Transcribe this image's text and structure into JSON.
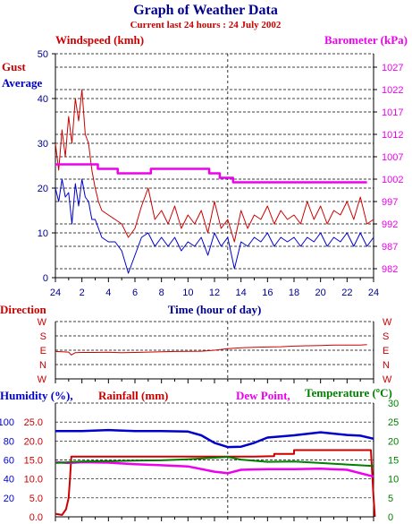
{
  "header": {
    "title": "Graph of Weather Data",
    "subtitle": "Current last 24 hours : 24 July 2002"
  },
  "colors": {
    "navy": "#00008B",
    "red": "#CC0000",
    "magenta": "#EE00EE",
    "green": "#008000",
    "blue": "#0000CC",
    "black": "#000000"
  },
  "chart_data": [
    {
      "type": "line",
      "labels": {
        "windspeed": "Windspeed (kmh)",
        "barometer": "Barometer (kPa)",
        "gust": "Gust",
        "average": "Average",
        "x": "Time (hour of day)"
      },
      "x_ticks": [
        "24",
        "2",
        "4",
        "6",
        "8",
        "10",
        "12",
        "14",
        "16",
        "18",
        "20",
        "22",
        "24"
      ],
      "ylim_left": [
        0,
        50
      ],
      "y_ticks_left": [
        "0",
        "10",
        "20",
        "30",
        "40",
        "50"
      ],
      "ylim_right": [
        980,
        1030
      ],
      "y_ticks_right": [
        "982",
        "987",
        "992",
        "997",
        "1002",
        "1007",
        "1012",
        "1017",
        "1022",
        "1027"
      ],
      "grid": true,
      "series": [
        {
          "name": "Gust",
          "color": "#CC0000",
          "axis": "left",
          "x": [
            0,
            0.25,
            0.5,
            0.75,
            1,
            1.25,
            1.5,
            1.75,
            2,
            2.25,
            2.5,
            2.75,
            3,
            3.25,
            3.5,
            4,
            4.5,
            5,
            5.5,
            6,
            6.5,
            7,
            7.5,
            8,
            8.5,
            9,
            9.5,
            10,
            10.5,
            11,
            11.5,
            12,
            12.5,
            13,
            13.5,
            14,
            14.5,
            15,
            15.5,
            16,
            16.5,
            17,
            17.5,
            18,
            18.5,
            19,
            19.5,
            20,
            20.5,
            21,
            21.5,
            22,
            22.5,
            23,
            23.5,
            24
          ],
          "y": [
            30,
            24,
            33,
            27,
            36,
            30,
            40,
            35,
            42,
            32,
            30,
            24,
            20,
            17,
            15,
            14,
            13,
            12,
            9,
            11,
            16,
            20,
            13,
            15,
            12,
            16,
            11,
            14,
            12,
            15,
            10,
            17,
            11,
            13,
            8,
            15,
            11,
            14,
            13,
            16,
            12,
            15,
            13,
            14,
            12,
            17,
            13,
            16,
            12,
            15,
            14,
            17,
            13,
            18,
            12,
            13
          ]
        },
        {
          "name": "Average",
          "color": "#0000CC",
          "axis": "left",
          "x": [
            0,
            0.25,
            0.5,
            0.75,
            1,
            1.25,
            1.5,
            1.75,
            2,
            2.25,
            2.5,
            2.75,
            3,
            3.25,
            3.5,
            4,
            4.5,
            5,
            5.5,
            6,
            6.5,
            7,
            7.5,
            8,
            8.5,
            9,
            9.5,
            10,
            10.5,
            11,
            11.5,
            12,
            12.5,
            13,
            13.5,
            14,
            14.5,
            15,
            15.5,
            16,
            16.5,
            17,
            17.5,
            18,
            18.5,
            19,
            19.5,
            20,
            20.5,
            21,
            21.5,
            22,
            22.5,
            23,
            23.5,
            24
          ],
          "y": [
            20,
            17,
            22,
            18,
            19,
            12,
            21,
            16,
            22,
            18,
            17,
            13,
            13,
            11,
            9,
            8,
            8,
            6,
            1,
            5,
            9,
            10,
            7,
            9,
            7,
            9,
            6,
            8,
            7,
            9,
            5,
            10,
            7,
            9,
            2,
            8,
            7,
            9,
            8,
            10,
            7,
            9,
            8,
            9,
            7,
            9,
            8,
            10,
            7,
            9,
            8,
            10,
            7,
            10,
            7,
            9
          ]
        },
        {
          "name": "Barometer",
          "color": "#EE00EE",
          "axis": "right",
          "x": [
            0,
            2,
            3.2,
            3.2,
            4.7,
            4.7,
            7.2,
            7.2,
            11.6,
            11.6,
            12.4,
            12.4,
            13.4,
            13.4,
            18,
            18,
            23.5
          ],
          "y": [
            1005.3,
            1005.3,
            1005.3,
            1004.3,
            1004.3,
            1003.3,
            1003.3,
            1004.3,
            1004.3,
            1003.3,
            1003.3,
            1002.3,
            1002.3,
            1001.3,
            1001.3,
            1001.3,
            1001.3
          ]
        }
      ]
    },
    {
      "type": "line",
      "labels": {
        "title": "Direction"
      },
      "y_ticks": [
        "W",
        "S",
        "E",
        "N",
        "W"
      ],
      "ylim": [
        0,
        360
      ],
      "series": [
        {
          "name": "Direction",
          "color": "#CC0000",
          "x": [
            0,
            0.5,
            1,
            1.2,
            1.5,
            2,
            3,
            4,
            5,
            6,
            7,
            8,
            9,
            10,
            11,
            12,
            13,
            14,
            15,
            16,
            17,
            18,
            19,
            20,
            21,
            22,
            23,
            23.5
          ],
          "y": [
            172,
            170,
            168,
            150,
            165,
            166,
            166,
            167,
            165,
            166,
            168,
            170,
            172,
            173,
            174,
            180,
            190,
            196,
            198,
            200,
            202,
            206,
            208,
            210,
            212,
            212,
            212,
            215
          ]
        }
      ]
    },
    {
      "type": "line",
      "labels": {
        "humidity": "Humidity (%),",
        "rainfall": "Rainfall (mm)",
        "dewpoint": "Dew Point,",
        "temperature": "Temperature (ºC)"
      },
      "y_ticks_humidity": [
        "20",
        "40",
        "60",
        "80",
        "100"
      ],
      "y_ticks_rain": [
        "0.0",
        "5.0",
        "10.0",
        "15.0",
        "20.0",
        "25.0"
      ],
      "y_ticks_temp": [
        "0",
        "5",
        "10",
        "15",
        "20",
        "25",
        "30"
      ],
      "ylim_rain": [
        0,
        30
      ],
      "ylim_temp": [
        0,
        30
      ],
      "series": [
        {
          "name": "Humidity",
          "color": "#0000CC",
          "axis": "humidity",
          "x": [
            0,
            2,
            4,
            6,
            8,
            10,
            11,
            12,
            13,
            14,
            15,
            16,
            18,
            20,
            22,
            23,
            24
          ],
          "y": [
            22.6,
            22.6,
            22.9,
            22.6,
            22.6,
            22.5,
            21.5,
            19.5,
            18.4,
            18.5,
            19.5,
            20.9,
            21.5,
            22.3,
            21.6,
            21.4,
            20.6
          ]
        },
        {
          "name": "Rainfall",
          "color": "#CC0000",
          "axis": "rain",
          "x": [
            0,
            0.5,
            0.8,
            1,
            1.1,
            1.2,
            1.5,
            13,
            15,
            16.5,
            16.5,
            17,
            18,
            18,
            23.8,
            24,
            24.1
          ],
          "y": [
            0.8,
            0.5,
            2,
            5,
            10,
            15.9,
            15.9,
            15.9,
            15.9,
            16,
            16.6,
            16.6,
            16.6,
            17.6,
            17.6,
            5,
            0
          ]
        },
        {
          "name": "Dew Point",
          "color": "#EE00EE",
          "axis": "temp",
          "x": [
            0,
            1,
            2,
            4,
            6,
            8,
            10,
            12,
            13,
            14,
            16,
            18,
            20,
            22,
            24
          ],
          "y": [
            14.4,
            14.2,
            14.4,
            14.3,
            13.9,
            13.6,
            13.3,
            11.9,
            11.5,
            12.4,
            12.6,
            12.6,
            12.7,
            12.4,
            10.6
          ]
        },
        {
          "name": "Temperature",
          "color": "#008000",
          "axis": "temp",
          "x": [
            0,
            1,
            2,
            4,
            6,
            8,
            10,
            12,
            13,
            14,
            16,
            18,
            20,
            22,
            24
          ],
          "y": [
            14.2,
            14.4,
            14.6,
            14.7,
            14.8,
            14.9,
            15.2,
            15.6,
            15.8,
            15.1,
            14.5,
            14.6,
            14.2,
            13.8,
            13.4
          ]
        }
      ]
    }
  ]
}
